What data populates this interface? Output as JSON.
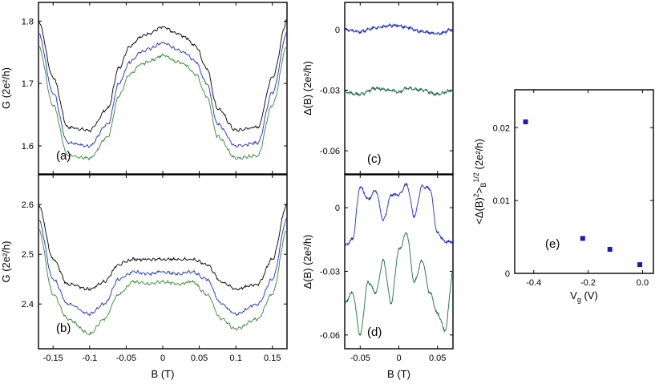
{
  "figure": {
    "background": "#ffffff",
    "colors": {
      "black": "#000000",
      "blue": "#1f2fc8",
      "green": "#2f8a2f",
      "dark_green": "#1f6e4a",
      "marker": "#1a1ab8"
    }
  },
  "chart_data": [
    {
      "id": "a",
      "type": "line",
      "panel_label": "(a)",
      "ylabel": "G (2e²/h)",
      "xlabel": "",
      "xlim": [
        -0.17,
        0.17
      ],
      "ylim": [
        1.555,
        1.83
      ],
      "xticks": [
        -0.15,
        -0.1,
        -0.05,
        0,
        0.05,
        0.1,
        0.15
      ],
      "yticks": [
        1.6,
        1.7,
        1.8
      ],
      "ytick_labels": [
        "1.6",
        "1.7",
        "1.8"
      ],
      "series": [
        {
          "name": "black",
          "color": "#000000",
          "x": [
            -0.17,
            -0.15,
            -0.13,
            -0.1,
            -0.075,
            -0.06,
            -0.045,
            -0.03,
            -0.02,
            0,
            0.02,
            0.03,
            0.045,
            0.06,
            0.075,
            0.1,
            0.13,
            0.15,
            0.17
          ],
          "y": [
            1.8,
            1.71,
            1.63,
            1.625,
            1.66,
            1.725,
            1.76,
            1.775,
            1.78,
            1.79,
            1.78,
            1.775,
            1.76,
            1.725,
            1.66,
            1.625,
            1.63,
            1.71,
            1.8
          ]
        },
        {
          "name": "blue",
          "color": "#1f2fc8",
          "x": [
            -0.17,
            -0.15,
            -0.13,
            -0.1,
            -0.075,
            -0.06,
            -0.045,
            -0.03,
            -0.02,
            0,
            0.02,
            0.03,
            0.045,
            0.06,
            0.075,
            0.1,
            0.13,
            0.15,
            0.17
          ],
          "y": [
            1.78,
            1.685,
            1.605,
            1.6,
            1.635,
            1.7,
            1.735,
            1.75,
            1.755,
            1.765,
            1.755,
            1.75,
            1.735,
            1.7,
            1.635,
            1.6,
            1.605,
            1.685,
            1.78
          ]
        },
        {
          "name": "green",
          "color": "#2f8a2f",
          "x": [
            -0.17,
            -0.15,
            -0.13,
            -0.1,
            -0.075,
            -0.06,
            -0.045,
            -0.03,
            -0.02,
            0,
            0.02,
            0.03,
            0.045,
            0.06,
            0.075,
            0.1,
            0.13,
            0.15,
            0.17
          ],
          "y": [
            1.76,
            1.665,
            1.585,
            1.58,
            1.615,
            1.68,
            1.715,
            1.73,
            1.735,
            1.745,
            1.735,
            1.73,
            1.715,
            1.68,
            1.615,
            1.58,
            1.585,
            1.665,
            1.76
          ]
        }
      ]
    },
    {
      "id": "b",
      "type": "line",
      "panel_label": "(b)",
      "ylabel": "G (2e²/h)",
      "xlabel": "B (T)",
      "xlim": [
        -0.17,
        0.17
      ],
      "ylim": [
        2.31,
        2.66
      ],
      "xticks": [
        -0.15,
        -0.1,
        -0.05,
        0,
        0.05,
        0.1,
        0.15
      ],
      "xtick_labels": [
        "-0.15",
        "-0.1",
        "-0.05",
        "0",
        "0.05",
        "0.1",
        "0.15"
      ],
      "yticks": [
        2.4,
        2.5,
        2.6
      ],
      "ytick_labels": [
        "2.4",
        "2.5",
        "2.6"
      ],
      "series": [
        {
          "name": "black",
          "color": "#000000",
          "x": [
            -0.17,
            -0.15,
            -0.13,
            -0.1,
            -0.08,
            -0.06,
            -0.04,
            -0.02,
            0,
            0.02,
            0.04,
            0.06,
            0.08,
            0.1,
            0.13,
            0.15,
            0.17
          ],
          "y": [
            2.6,
            2.49,
            2.44,
            2.43,
            2.445,
            2.48,
            2.49,
            2.49,
            2.49,
            2.49,
            2.49,
            2.48,
            2.445,
            2.43,
            2.44,
            2.49,
            2.6
          ]
        },
        {
          "name": "blue",
          "color": "#1f2fc8",
          "x": [
            -0.17,
            -0.15,
            -0.13,
            -0.1,
            -0.08,
            -0.06,
            -0.04,
            -0.02,
            0,
            0.02,
            0.04,
            0.06,
            0.08,
            0.1,
            0.13,
            0.15,
            0.17
          ],
          "y": [
            2.57,
            2.45,
            2.4,
            2.38,
            2.4,
            2.45,
            2.465,
            2.46,
            2.465,
            2.46,
            2.465,
            2.45,
            2.4,
            2.38,
            2.4,
            2.45,
            2.57
          ]
        },
        {
          "name": "green",
          "color": "#2f8a2f",
          "x": [
            -0.17,
            -0.15,
            -0.13,
            -0.1,
            -0.08,
            -0.06,
            -0.04,
            -0.02,
            0,
            0.02,
            0.04,
            0.06,
            0.08,
            0.1,
            0.13,
            0.15,
            0.17
          ],
          "y": [
            2.55,
            2.42,
            2.37,
            2.34,
            2.37,
            2.42,
            2.445,
            2.44,
            2.445,
            2.44,
            2.445,
            2.42,
            2.37,
            2.35,
            2.37,
            2.42,
            2.55
          ]
        }
      ]
    },
    {
      "id": "c",
      "type": "line",
      "panel_label": "(c)",
      "ylabel": "Δ(B) (2e²/h)",
      "xlabel": "",
      "xlim": [
        -0.07,
        0.07
      ],
      "ylim": [
        -0.0715,
        0.0135
      ],
      "xticks": [
        -0.05,
        0,
        0.05
      ],
      "yticks": [
        0,
        -0.03,
        -0.06
      ],
      "ytick_labels": [
        "0",
        "-0.03",
        "-0.06"
      ],
      "series": [
        {
          "name": "blue",
          "color": "#1f2fc8",
          "x": [
            -0.07,
            -0.05,
            -0.03,
            -0.01,
            0,
            0.01,
            0.03,
            0.05,
            0.07
          ],
          "y": [
            0.0,
            -0.001,
            0.001,
            0.002,
            0.002,
            0.001,
            -0.001,
            -0.002,
            0.0
          ]
        },
        {
          "name": "dark_green",
          "color": "#1f6e4a",
          "x": [
            -0.07,
            -0.05,
            -0.03,
            -0.01,
            0,
            0.01,
            0.03,
            0.05,
            0.07
          ],
          "y": [
            -0.031,
            -0.032,
            -0.029,
            -0.03,
            -0.031,
            -0.029,
            -0.03,
            -0.032,
            -0.03
          ]
        }
      ]
    },
    {
      "id": "d",
      "type": "line",
      "panel_label": "(d)",
      "ylabel": "Δ(B) (2e²/h)",
      "xlabel": "B (T)",
      "xlim": [
        -0.07,
        0.07
      ],
      "ylim": [
        -0.0665,
        0.0155
      ],
      "xticks": [
        -0.05,
        0,
        0.05
      ],
      "xtick_labels": [
        "-0.05",
        "0",
        "0.05"
      ],
      "yticks": [
        0,
        -0.03,
        -0.06
      ],
      "ytick_labels": [
        "0",
        "-0.03",
        "-0.06"
      ],
      "series": [
        {
          "name": "blue",
          "color": "#1f2fc8",
          "x": [
            -0.07,
            -0.06,
            -0.05,
            -0.04,
            -0.03,
            -0.02,
            -0.01,
            0,
            0.01,
            0.02,
            0.03,
            0.04,
            0.05,
            0.06,
            0.07
          ],
          "y": [
            -0.018,
            -0.015,
            0.01,
            0.004,
            0.008,
            -0.006,
            0.006,
            0.006,
            0.011,
            -0.004,
            0.01,
            0.009,
            -0.012,
            -0.016,
            -0.016
          ]
        },
        {
          "name": "dark_green",
          "color": "#1f6e4a",
          "x": [
            -0.07,
            -0.06,
            -0.05,
            -0.04,
            -0.03,
            -0.02,
            -0.01,
            0,
            0.01,
            0.02,
            0.03,
            0.04,
            0.05,
            0.06,
            0.07
          ],
          "y": [
            -0.045,
            -0.04,
            -0.06,
            -0.035,
            -0.04,
            -0.025,
            -0.045,
            -0.02,
            -0.012,
            -0.035,
            -0.025,
            -0.04,
            -0.05,
            -0.058,
            -0.03
          ]
        }
      ]
    },
    {
      "id": "e",
      "type": "scatter",
      "panel_label": "(e)",
      "ylabel": "<Δ(B)²>_B^1/2 (2e²/h)",
      "ylabel_main": "<Δ(B)",
      "ylabel_sup1": "2",
      "ylabel_mid": ">",
      "ylabel_sub": "B",
      "ylabel_sup2": "1/2",
      "ylabel_tail": " (2e²/h)",
      "xlabel": "V_g (V)",
      "xlabel_main": "V",
      "xlabel_sub": "g",
      "xlabel_tail": " (V)",
      "xlim": [
        -0.47,
        0.04
      ],
      "ylim": [
        0,
        0.0252
      ],
      "xticks": [
        -0.4,
        -0.2,
        0
      ],
      "xtick_labels": [
        "-0.4",
        "-0.2",
        "0.0"
      ],
      "yticks": [
        0,
        0.01,
        0.02
      ],
      "ytick_labels": [
        "0",
        "0.01",
        "0.02"
      ],
      "x": [
        -0.43,
        -0.22,
        -0.12,
        -0.01
      ],
      "y": [
        0.0208,
        0.0048,
        0.0033,
        0.0012
      ]
    }
  ]
}
